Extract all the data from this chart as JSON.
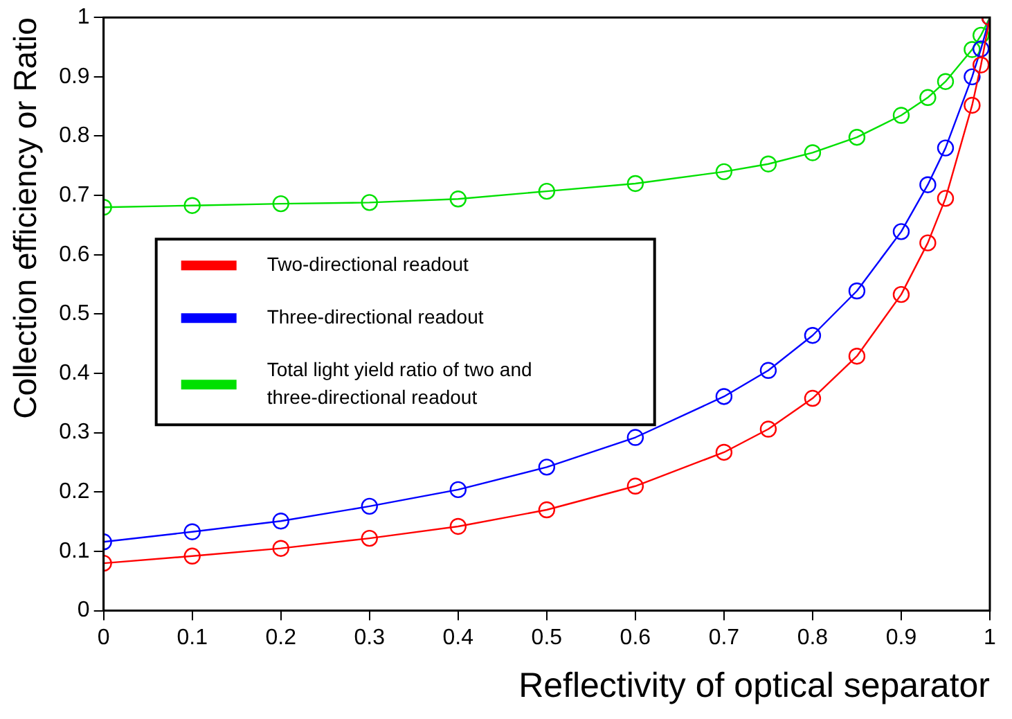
{
  "chart_data": {
    "type": "line",
    "xlabel": "Reflectivity of optical separator",
    "ylabel": "Collection efficiency or Ratio",
    "x": [
      0,
      0.1,
      0.2,
      0.3,
      0.4,
      0.5,
      0.6,
      0.7,
      0.75,
      0.8,
      0.85,
      0.9,
      0.93,
      0.95,
      0.98,
      0.99,
      1.0
    ],
    "series": [
      {
        "name": "Two-directional readout",
        "color": "#ff0000",
        "values": [
          0.08,
          0.092,
          0.105,
          0.122,
          0.142,
          0.17,
          0.21,
          0.267,
          0.306,
          0.358,
          0.429,
          0.533,
          0.62,
          0.695,
          0.852,
          0.92,
          1.0
        ]
      },
      {
        "name": "Three-directional readout",
        "color": "#0000ff",
        "values": [
          0.116,
          0.133,
          0.151,
          0.176,
          0.204,
          0.242,
          0.292,
          0.361,
          0.405,
          0.464,
          0.539,
          0.639,
          0.718,
          0.78,
          0.9,
          0.947,
          1.0
        ]
      },
      {
        "name": "Total light yield ratio of two and three-directional readout",
        "color": "#00e000",
        "values": [
          0.68,
          0.683,
          0.686,
          0.688,
          0.694,
          0.707,
          0.72,
          0.74,
          0.753,
          0.772,
          0.798,
          0.835,
          0.865,
          0.892,
          0.946,
          0.97,
          1.0
        ]
      }
    ],
    "xlim": [
      0,
      1
    ],
    "xticks": [
      0,
      0.1,
      0.2,
      0.3,
      0.4,
      0.5,
      0.6,
      0.7,
      0.8,
      0.9,
      1
    ],
    "ylim": [
      0,
      1
    ],
    "yticks": [
      0,
      0.1,
      0.2,
      0.3,
      0.4,
      0.5,
      0.6,
      0.7,
      0.8,
      0.9,
      1
    ],
    "grid": false,
    "legend": "center left",
    "marker": "circle",
    "line_style": "solid"
  }
}
